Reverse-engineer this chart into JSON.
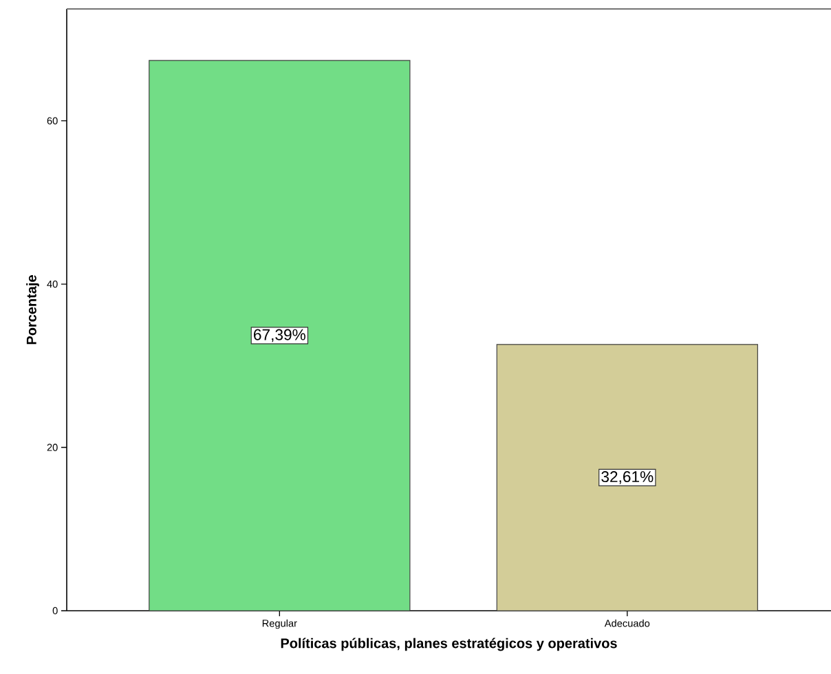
{
  "chart_data": {
    "type": "bar",
    "xlabel": "Políticas públicas, planes estratégicos y operativos",
    "ylabel": "Porcentaje",
    "categories": [
      "Regular",
      "Adecuado"
    ],
    "values": [
      67.39,
      32.61
    ],
    "colors": [
      "#72dd86",
      "#d3cd98"
    ],
    "value_labels": [
      "67,39%",
      "32,61%"
    ],
    "ylim": [
      0,
      73.7
    ],
    "yticks": [
      0,
      20,
      40,
      60
    ],
    "grid": false
  }
}
